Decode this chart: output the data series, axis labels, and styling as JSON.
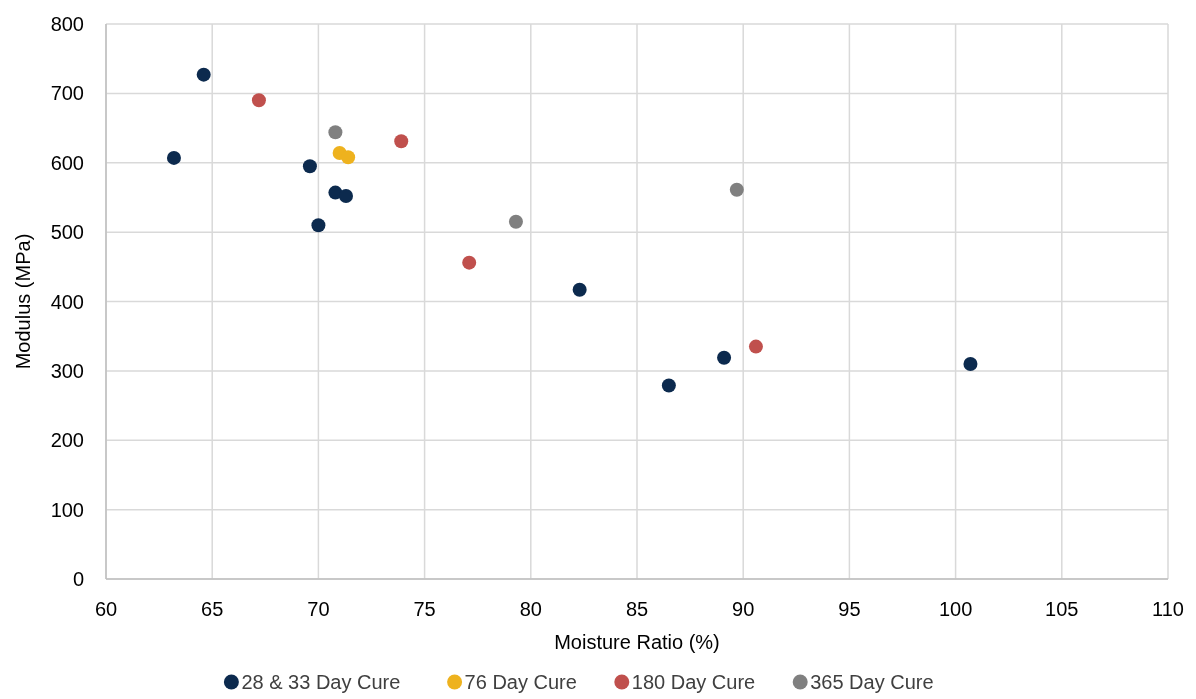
{
  "chart_data": {
    "type": "scatter",
    "xlabel": "Moisture Ratio (%)",
    "ylabel": "Modulus (MPa)",
    "xlim": [
      60,
      110
    ],
    "xticks": [
      60,
      65,
      70,
      75,
      80,
      85,
      90,
      95,
      100,
      105,
      110
    ],
    "ylim": [
      0,
      800
    ],
    "yticks": [
      0,
      100,
      200,
      300,
      400,
      500,
      600,
      700,
      800
    ],
    "grid": true,
    "legend": "bottom",
    "marker": "circle",
    "series": [
      {
        "name": "28 & 33 Day Cure",
        "color": "#0c2a4e",
        "x": [
          63.2,
          64.6,
          69.6,
          70.8,
          71.3,
          70.0,
          82.3,
          86.5,
          89.1,
          100.7
        ],
        "values": [
          607,
          727,
          595,
          557,
          552,
          510,
          417,
          279,
          319,
          310
        ]
      },
      {
        "name": "76 Day Cure",
        "color": "#eeb21e",
        "x": [
          71.0,
          71.4
        ],
        "values": [
          614,
          608
        ]
      },
      {
        "name": "180 Day Cure",
        "color": "#c0504d",
        "x": [
          67.2,
          73.9,
          77.1,
          90.6
        ],
        "values": [
          690,
          631,
          456,
          335
        ]
      },
      {
        "name": "365 Day Cure",
        "color": "#808080",
        "x": [
          70.8,
          79.3,
          89.7
        ],
        "values": [
          644,
          515,
          561
        ]
      }
    ]
  }
}
